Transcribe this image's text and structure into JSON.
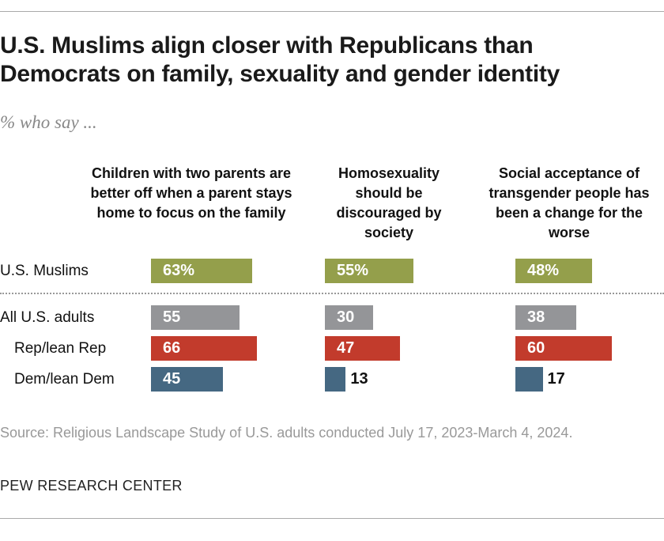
{
  "chart_data": {
    "type": "bar",
    "title": "U.S. Muslims align closer with Republicans than Democrats on family, sexuality and gender identity",
    "subtitle": "% who say ...",
    "categories": [
      "U.S. Muslims",
      "All U.S. adults",
      "Rep/lean Rep",
      "Dem/lean Dem"
    ],
    "panels": [
      {
        "name": "Children with two parents are better off when a parent stays home to focus on the family",
        "values": [
          63,
          55,
          66,
          45
        ]
      },
      {
        "name": "Homosexuality should be discouraged by society",
        "values": [
          55,
          30,
          47,
          13
        ]
      },
      {
        "name": "Social acceptance of transgender people has been a change for the worse",
        "values": [
          48,
          38,
          60,
          17
        ]
      }
    ],
    "colors": [
      "#949f4b",
      "#949598",
      "#c23b2c",
      "#456882"
    ],
    "source": "Source: Religious Landscape Study of U.S. adults conducted July 17, 2023-March 4, 2024.",
    "brand": "PEW RESEARCH CENTER"
  }
}
